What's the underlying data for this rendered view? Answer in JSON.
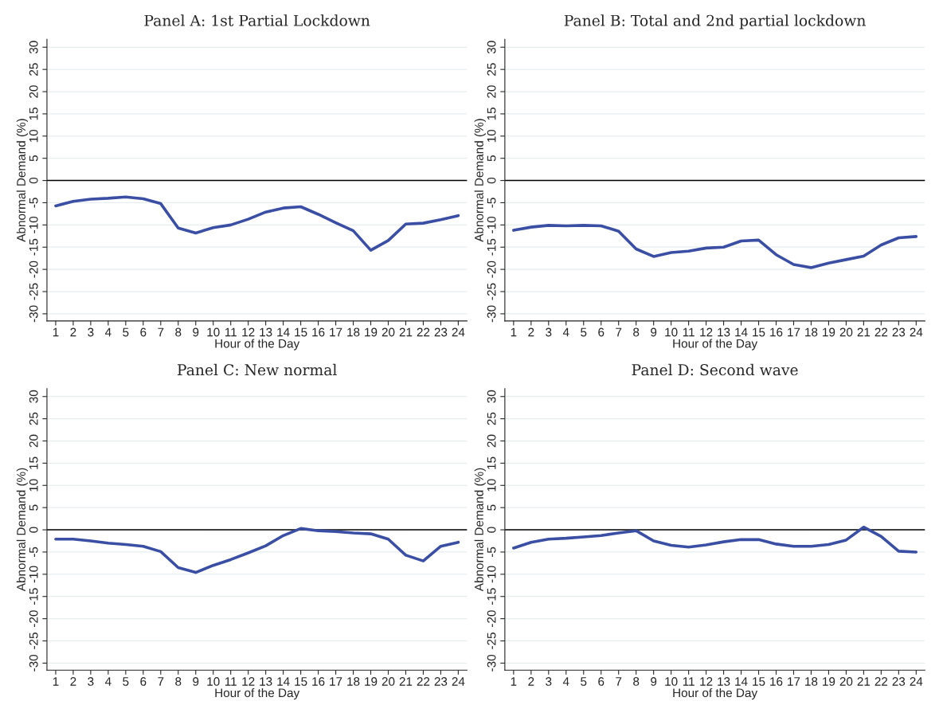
{
  "chart_data": [
    {
      "type": "line",
      "title": "Panel A: 1st Partial Lockdown",
      "xlabel": "Hour of the Day",
      "ylabel": "Abnormal Demand (%)",
      "x": [
        1,
        2,
        3,
        4,
        5,
        6,
        7,
        8,
        9,
        10,
        11,
        12,
        13,
        14,
        15,
        16,
        17,
        18,
        19,
        20,
        21,
        22,
        23,
        24
      ],
      "series": [
        {
          "color": "#3a4ea3",
          "values": [
            -5.7,
            -4.7,
            -4.2,
            -4.0,
            -3.7,
            -4.1,
            -5.2,
            -10.7,
            -11.8,
            -10.6,
            -10.0,
            -8.7,
            -7.1,
            -6.2,
            -5.9,
            -7.6,
            -9.5,
            -11.3,
            -15.7,
            -13.5,
            -9.8,
            -9.6,
            -8.8,
            -7.9
          ]
        }
      ],
      "xlim": [
        0.5,
        24.5
      ],
      "xticks": [
        1,
        2,
        3,
        4,
        5,
        6,
        7,
        8,
        9,
        10,
        11,
        12,
        13,
        14,
        15,
        16,
        17,
        18,
        19,
        20,
        21,
        22,
        23,
        24
      ],
      "ylim": [
        -31.6,
        31.8
      ],
      "yticks": [
        -30,
        -25,
        -20,
        -15,
        -10,
        -5,
        0,
        5,
        10,
        15,
        20,
        25,
        30
      ],
      "ref_lines": [
        {
          "axis": "y",
          "value": 0,
          "color": "#000000"
        }
      ],
      "grid": "y"
    },
    {
      "type": "line",
      "title": "Panel B: Total and 2nd partial lockdown",
      "xlabel": "Hour of the Day",
      "ylabel": "Abnormal Demand (%)",
      "x": [
        1,
        2,
        3,
        4,
        5,
        6,
        7,
        8,
        9,
        10,
        11,
        12,
        13,
        14,
        15,
        16,
        17,
        18,
        19,
        20,
        21,
        22,
        23,
        24
      ],
      "series": [
        {
          "color": "#3a4ea3",
          "values": [
            -11.2,
            -10.5,
            -10.1,
            -10.2,
            -10.1,
            -10.2,
            -11.4,
            -15.4,
            -17.1,
            -16.2,
            -15.9,
            -15.2,
            -15.0,
            -13.6,
            -13.4,
            -16.7,
            -18.9,
            -19.6,
            -18.6,
            -17.8,
            -17.0,
            -14.5,
            -12.9,
            -12.6
          ]
        }
      ],
      "xlim": [
        0.5,
        24.5
      ],
      "xticks": [
        1,
        2,
        3,
        4,
        5,
        6,
        7,
        8,
        9,
        10,
        11,
        12,
        13,
        14,
        15,
        16,
        17,
        18,
        19,
        20,
        21,
        22,
        23,
        24
      ],
      "ylim": [
        -31.6,
        31.8
      ],
      "yticks": [
        -30,
        -25,
        -20,
        -15,
        -10,
        -5,
        0,
        5,
        10,
        15,
        20,
        25,
        30
      ],
      "ref_lines": [
        {
          "axis": "y",
          "value": 0,
          "color": "#000000"
        }
      ],
      "grid": "y"
    },
    {
      "type": "line",
      "title": "Panel C: New normal",
      "xlabel": "Hour of the Day",
      "ylabel": "Abnormal Demand (%)",
      "x": [
        1,
        2,
        3,
        4,
        5,
        6,
        7,
        8,
        9,
        10,
        11,
        12,
        13,
        14,
        15,
        16,
        17,
        18,
        19,
        20,
        21,
        22,
        23,
        24
      ],
      "series": [
        {
          "color": "#3a4ea3",
          "values": [
            -2.1,
            -2.1,
            -2.5,
            -3.0,
            -3.3,
            -3.7,
            -4.9,
            -8.5,
            -9.6,
            -8.0,
            -6.7,
            -5.2,
            -3.6,
            -1.3,
            0.3,
            -0.2,
            -0.4,
            -0.7,
            -0.9,
            -2.1,
            -5.7,
            -7.0,
            -3.7,
            -2.8
          ]
        }
      ],
      "xlim": [
        0.5,
        24.5
      ],
      "xticks": [
        1,
        2,
        3,
        4,
        5,
        6,
        7,
        8,
        9,
        10,
        11,
        12,
        13,
        14,
        15,
        16,
        17,
        18,
        19,
        20,
        21,
        22,
        23,
        24
      ],
      "ylim": [
        -31.6,
        31.8
      ],
      "yticks": [
        -30,
        -25,
        -20,
        -15,
        -10,
        -5,
        0,
        5,
        10,
        15,
        20,
        25,
        30
      ],
      "ref_lines": [
        {
          "axis": "y",
          "value": 0,
          "color": "#000000"
        }
      ],
      "grid": "y"
    },
    {
      "type": "line",
      "title": "Panel D: Second wave",
      "xlabel": "Hour of the Day",
      "ylabel": "Abnormal Demand (%)",
      "x": [
        1,
        2,
        3,
        4,
        5,
        6,
        7,
        8,
        9,
        10,
        11,
        12,
        13,
        14,
        15,
        16,
        17,
        18,
        19,
        20,
        21,
        22,
        23,
        24
      ],
      "series": [
        {
          "color": "#3a4ea3",
          "values": [
            -4.1,
            -2.8,
            -2.1,
            -1.9,
            -1.6,
            -1.3,
            -0.7,
            -0.2,
            -2.5,
            -3.5,
            -3.9,
            -3.4,
            -2.7,
            -2.2,
            -2.2,
            -3.2,
            -3.7,
            -3.7,
            -3.3,
            -2.3,
            0.6,
            -1.5,
            -4.8,
            -5.0
          ]
        }
      ],
      "xlim": [
        0.5,
        24.5
      ],
      "xticks": [
        1,
        2,
        3,
        4,
        5,
        6,
        7,
        8,
        9,
        10,
        11,
        12,
        13,
        14,
        15,
        16,
        17,
        18,
        19,
        20,
        21,
        22,
        23,
        24
      ],
      "ylim": [
        -31.6,
        31.8
      ],
      "yticks": [
        -30,
        -25,
        -20,
        -15,
        -10,
        -5,
        0,
        5,
        10,
        15,
        20,
        25,
        30
      ],
      "ref_lines": [
        {
          "axis": "y",
          "value": 0,
          "color": "#000000"
        }
      ],
      "grid": "y"
    }
  ]
}
